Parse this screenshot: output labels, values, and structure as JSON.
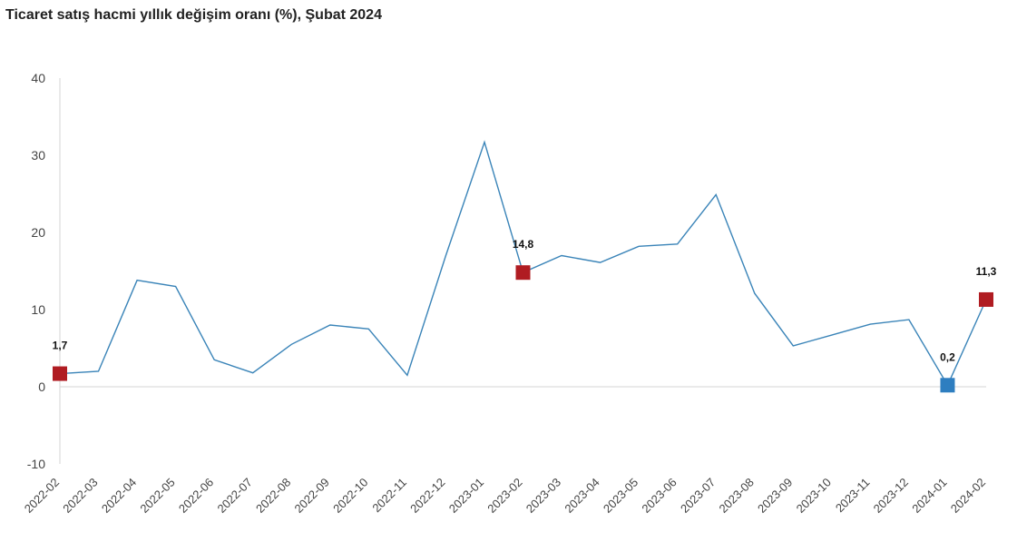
{
  "chart_data": {
    "type": "line",
    "title": "Ticaret satış hacmi yıllık değişim oranı (%), Şubat 2024",
    "xlabel": "",
    "ylabel": "",
    "ylim": [
      -10,
      40
    ],
    "y_ticks": [
      -10,
      0,
      10,
      20,
      30,
      40
    ],
    "grid": false,
    "categories": [
      "2022-02",
      "2022-03",
      "2022-04",
      "2022-05",
      "2022-06",
      "2022-07",
      "2022-08",
      "2022-09",
      "2022-10",
      "2022-11",
      "2022-12",
      "2023-01",
      "2023-02",
      "2023-03",
      "2023-04",
      "2023-05",
      "2023-06",
      "2023-07",
      "2023-08",
      "2023-09",
      "2023-10",
      "2023-11",
      "2023-12",
      "2024-01",
      "2024-02"
    ],
    "series": [
      {
        "values": [
          1.7,
          2.0,
          13.8,
          13.0,
          3.5,
          1.8,
          5.5,
          8.0,
          7.5,
          1.5,
          17.0,
          31.7,
          14.8,
          17.0,
          16.1,
          18.2,
          18.5,
          24.9,
          12.1,
          5.3,
          6.7,
          8.1,
          8.7,
          0.2,
          11.3
        ]
      }
    ],
    "highlights": [
      {
        "index": 0,
        "label": "1,7",
        "color": "#b01c22"
      },
      {
        "index": 12,
        "label": "14,8",
        "color": "#b01c22"
      },
      {
        "index": 23,
        "label": "0,2",
        "color": "#2e7ec0"
      },
      {
        "index": 24,
        "label": "11,3",
        "color": "#b01c22"
      }
    ],
    "colors": {
      "line": "#3a84b8",
      "axis": "#d6d6d6"
    }
  }
}
